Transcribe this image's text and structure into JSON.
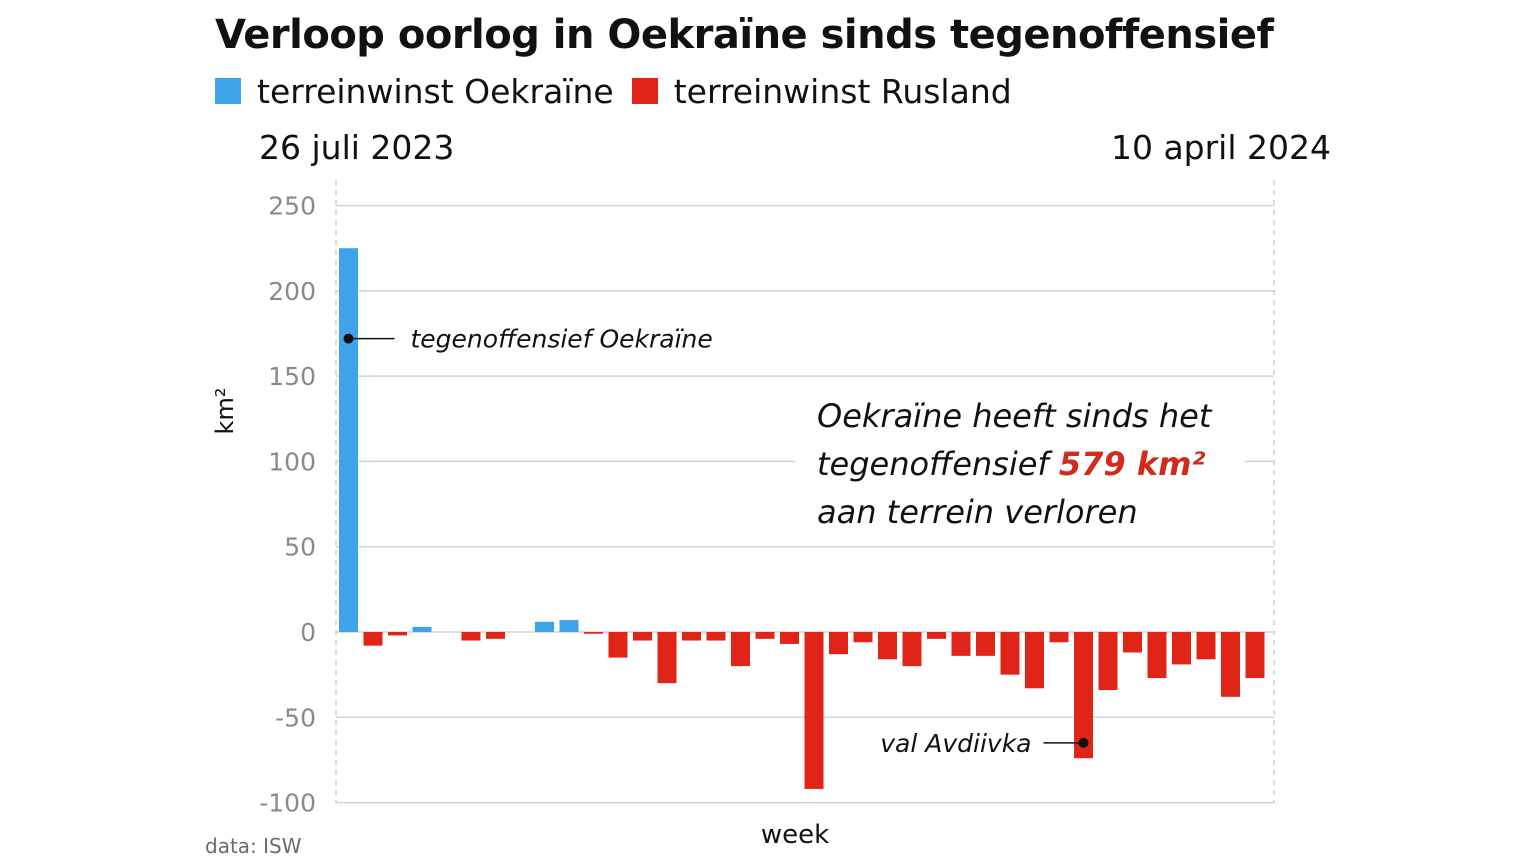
{
  "chart_data": {
    "type": "bar",
    "title": "Verloop oorlog in Oekraïne sinds tegenoffensief",
    "xlabel": "week",
    "ylabel": "km²",
    "x_start_label": "26 juli 2023",
    "x_end_label": "10 april 2024",
    "ylim": [
      -100,
      250
    ],
    "yticks": [
      250,
      200,
      150,
      100,
      50,
      0,
      -50,
      -100
    ],
    "grid": true,
    "legend_position": "top-left",
    "series": [
      {
        "name": "terreinwinst Oekraïne",
        "color": "#3fa3ec"
      },
      {
        "name": "terreinwinst Rusland",
        "color": "#e02418"
      }
    ],
    "weeks": [
      1,
      2,
      3,
      4,
      5,
      6,
      7,
      8,
      9,
      10,
      11,
      12,
      13,
      14,
      15,
      16,
      17,
      18,
      19,
      20,
      21,
      22,
      23,
      24,
      25,
      26,
      27,
      28,
      29,
      30,
      31,
      32,
      33,
      34,
      35,
      36,
      37,
      38
    ],
    "values": [
      225,
      -8,
      -2,
      3,
      0,
      -5,
      -4,
      0,
      6,
      7,
      -1,
      -15,
      -5,
      -30,
      -5,
      -5,
      -20,
      -4,
      -7,
      -92,
      -13,
      -6,
      -16,
      -20,
      -4,
      -14,
      -14,
      -25,
      -33,
      -6,
      -74,
      -34,
      -12,
      -27,
      -19,
      -16,
      -38,
      -27
    ],
    "annotations": [
      {
        "text": "tegenoffensief Oekraïne",
        "week": 1,
        "value": 172,
        "side": "right"
      },
      {
        "text": "val Avdiivka",
        "week": 31,
        "value": -65,
        "side": "left"
      }
    ],
    "callout": {
      "line1": "Oekraïne heeft sinds het",
      "line2_prefix": "tegenoffensief ",
      "highlight": "579 km²",
      "line3": "aan terrein verloren",
      "highlight_color": "#d42a1c"
    }
  },
  "source": "data: ISW"
}
